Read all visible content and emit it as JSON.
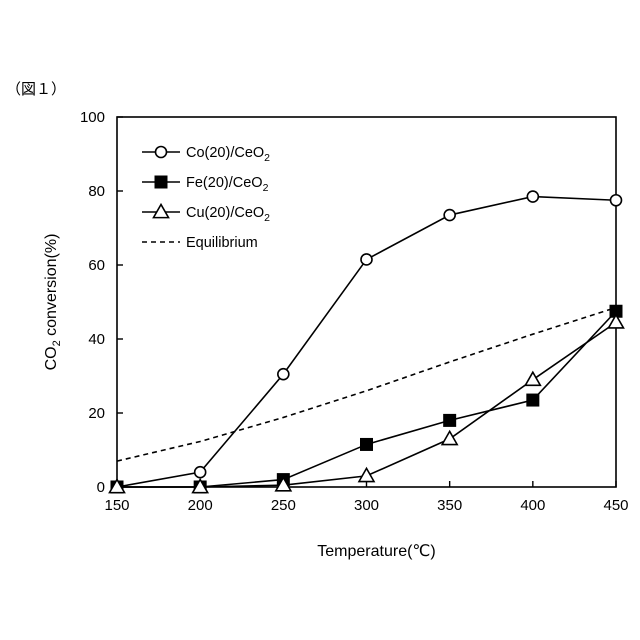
{
  "figure_label": "（図１）",
  "chart_data": {
    "type": "line",
    "xlabel": "Temperature(℃)",
    "ylabel": "CO2 conversion(%)",
    "ylabel_main": "CO",
    "ylabel_sub": "2",
    "ylabel_rest": " conversion(%)",
    "xlim": [
      150,
      450
    ],
    "ylim": [
      0,
      100
    ],
    "xticks": [
      150,
      200,
      250,
      300,
      350,
      400,
      450
    ],
    "yticks": [
      0,
      20,
      40,
      60,
      80,
      100
    ],
    "grid": false,
    "legend_position": "top-left",
    "x": [
      150,
      200,
      250,
      300,
      350,
      400,
      450
    ],
    "series": [
      {
        "name": "Co(20)/CeO2",
        "name_main": "Co(20)/CeO",
        "name_sub": "2",
        "marker": "circle-open",
        "line": "solid",
        "values": [
          0,
          4,
          30.5,
          61.5,
          73.5,
          78.5,
          77.5
        ]
      },
      {
        "name": "Fe(20)/CeO2",
        "name_main": "Fe(20)/CeO",
        "name_sub": "2",
        "marker": "square-filled",
        "line": "solid",
        "values": [
          0,
          0,
          2,
          11.5,
          18,
          23.5,
          47.5
        ]
      },
      {
        "name": "Cu(20)/CeO2",
        "name_main": "Cu(20)/CeO",
        "name_sub": "2",
        "marker": "triangle-open",
        "line": "solid",
        "values": [
          0,
          0,
          0.5,
          3,
          13,
          29,
          44.5
        ]
      },
      {
        "name": "Equilibrium",
        "name_main": "Equilibrium",
        "name_sub": "",
        "marker": "none",
        "line": "dashed",
        "values": [
          7,
          12.3,
          18.8,
          26,
          33.8,
          41.3,
          48.5
        ]
      }
    ]
  }
}
